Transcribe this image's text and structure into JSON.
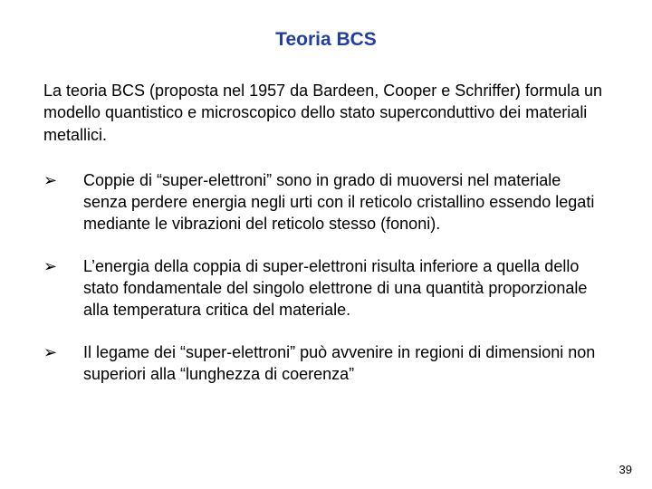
{
  "title": {
    "text": "Teoria BCS",
    "color": "#1f3ea8",
    "fontsize": 21
  },
  "intro": {
    "text": "La teoria BCS (proposta nel 1957 da Bardeen, Cooper e Schriffer) formula un modello quantistico e microscopico dello stato superconduttivo dei materiali metallici.",
    "color": "#000000",
    "fontsize": 18
  },
  "bullets": {
    "marker": "➢",
    "marker_color": "#000000",
    "text_color": "#000000",
    "fontsize": 18,
    "items": [
      "Coppie di “super-elettroni” sono in grado di muoversi nel materiale senza perdere energia negli urti con il reticolo cristallino essendo legati mediante le vibrazioni del reticolo stesso (fononi).",
      "L’energia della coppia di super-elettroni risulta inferiore a quella dello stato fondamentale del singolo elettrone di una quantità proporzionale alla temperatura critica del materiale.",
      "Il legame dei “super-elettroni” può avvenire in regioni di dimensioni non superiori alla “lunghezza di coerenza”"
    ]
  },
  "page_number": {
    "text": "39",
    "color": "#000000",
    "fontsize": 13
  },
  "background_color": "#ffffff"
}
